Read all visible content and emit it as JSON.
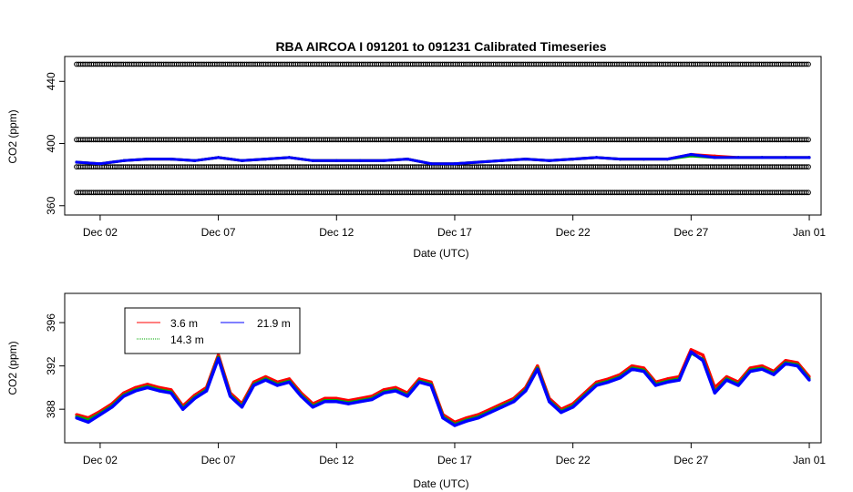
{
  "chart_data": [
    {
      "type": "scatter",
      "title": "RBA   AIRCOA I    091201  to  091231   Calibrated Timeseries",
      "xlabel": "Date (UTC)",
      "ylabel": "CO2 (ppm)",
      "xlim": [
        -0.5,
        31.5
      ],
      "ylim": [
        354,
        456
      ],
      "xticks": [
        1,
        6,
        11,
        16,
        21,
        26,
        31
      ],
      "xtick_labels": [
        "Dec 02",
        "Dec 07",
        "Dec 12",
        "Dec 17",
        "Dec 22",
        "Dec 27",
        "Jan 01"
      ],
      "yticks": [
        360,
        400,
        440
      ],
      "ytick_labels": [
        "360",
        "400",
        "440"
      ],
      "reference_lines": [
        {
          "name": "ref-high",
          "value": 451,
          "color": "#000000",
          "marker": "open-circle"
        },
        {
          "name": "ref-upper",
          "value": 402.5,
          "color": "#000000",
          "marker": "open-circle"
        },
        {
          "name": "ref-lower",
          "value": 385,
          "color": "#000000",
          "marker": "open-circle"
        },
        {
          "name": "ref-low",
          "value": 368.5,
          "color": "#000000",
          "marker": "open-circle"
        }
      ],
      "series": [
        {
          "name": "3.6 m",
          "color": "#ff0000",
          "dates": [
            0,
            1,
            2,
            3,
            4,
            5,
            6,
            7,
            8,
            9,
            10,
            11,
            12,
            13,
            14,
            15,
            16,
            17,
            18,
            19,
            20,
            21,
            22,
            23,
            24,
            25,
            26,
            27,
            28,
            29,
            30,
            31
          ],
          "values": [
            388,
            387,
            389,
            390,
            390,
            389,
            391,
            389,
            390,
            391,
            389,
            389,
            389,
            389,
            390,
            387,
            387,
            388,
            389,
            390,
            389,
            390,
            391,
            390,
            390,
            390,
            393,
            392,
            391,
            391,
            391,
            391
          ]
        },
        {
          "name": "14.3 m",
          "color": "#00aa00",
          "dates": [
            0,
            1,
            2,
            3,
            4,
            5,
            6,
            7,
            8,
            9,
            10,
            11,
            12,
            13,
            14,
            15,
            16,
            17,
            18,
            19,
            20,
            21,
            22,
            23,
            24,
            25,
            26,
            27,
            28,
            29,
            30,
            31
          ],
          "values": [
            388,
            387,
            389,
            390,
            390,
            389,
            391,
            389,
            390,
            391,
            389,
            389,
            389,
            389,
            390,
            387,
            387,
            388,
            389,
            390,
            389,
            390,
            391,
            390,
            390,
            390,
            392,
            391,
            391,
            391,
            391,
            391
          ]
        },
        {
          "name": "21.9 m",
          "color": "#0000ff",
          "dates": [
            0,
            1,
            2,
            3,
            4,
            5,
            6,
            7,
            8,
            9,
            10,
            11,
            12,
            13,
            14,
            15,
            16,
            17,
            18,
            19,
            20,
            21,
            22,
            23,
            24,
            25,
            26,
            27,
            28,
            29,
            30,
            31
          ],
          "values": [
            388,
            387,
            389,
            390,
            390,
            389,
            391,
            389,
            390,
            391,
            389,
            389,
            389,
            389,
            390,
            387,
            387,
            388,
            389,
            390,
            389,
            390,
            391,
            390,
            390,
            390,
            393,
            391,
            391,
            391,
            391,
            391
          ]
        }
      ]
    },
    {
      "type": "scatter",
      "title": "",
      "xlabel": "Date (UTC)",
      "ylabel": "CO2 (ppm)",
      "xlim": [
        -0.5,
        31.5
      ],
      "ylim": [
        384.9,
        398.7
      ],
      "xticks": [
        1,
        6,
        11,
        16,
        21,
        26,
        31
      ],
      "xtick_labels": [
        "Dec 02",
        "Dec 07",
        "Dec 12",
        "Dec 17",
        "Dec 22",
        "Dec 27",
        "Jan 01"
      ],
      "yticks": [
        388,
        392,
        396
      ],
      "ytick_labels": [
        "388",
        "392",
        "396"
      ],
      "legend": {
        "placement": "top-left",
        "entries": [
          "3.6 m",
          "14.3 m",
          "21.9 m"
        ]
      },
      "series": [
        {
          "name": "3.6 m",
          "color": "#ff0000",
          "dates": [
            0,
            0.5,
            1,
            1.5,
            2,
            2.5,
            3,
            3.5,
            4,
            4.5,
            5,
            5.5,
            6,
            6.5,
            7,
            7.5,
            8,
            8.5,
            9,
            9.5,
            10,
            10.5,
            11,
            11.5,
            12,
            12.5,
            13,
            13.5,
            14,
            14.5,
            15,
            15.5,
            16,
            16.5,
            17,
            17.5,
            18,
            18.5,
            19,
            19.5,
            20,
            20.5,
            21,
            21.5,
            22,
            22.5,
            23,
            23.5,
            24,
            24.5,
            25,
            25.5,
            26,
            26.5,
            27,
            27.5,
            28,
            28.5,
            29,
            29.5,
            30,
            30.5,
            31
          ],
          "values": [
            387.5,
            387.2,
            387.8,
            388.5,
            389.5,
            390.0,
            390.3,
            390.0,
            389.8,
            388.3,
            389.3,
            390.0,
            393.0,
            389.5,
            388.5,
            390.5,
            391.0,
            390.5,
            390.8,
            389.5,
            388.5,
            389.0,
            389.0,
            388.8,
            389.0,
            389.2,
            389.8,
            390.0,
            389.5,
            390.8,
            390.5,
            387.5,
            386.8,
            387.2,
            387.5,
            388.0,
            388.5,
            389.0,
            390.0,
            392.0,
            389.0,
            388.0,
            388.5,
            389.5,
            390.5,
            390.8,
            391.2,
            392.0,
            391.8,
            390.5,
            390.8,
            391.0,
            393.5,
            393.0,
            390.0,
            391.0,
            390.5,
            391.8,
            392.0,
            391.5,
            392.5,
            392.3,
            391.0
          ]
        },
        {
          "name": "14.3 m",
          "color": "#00aa00",
          "dates": [
            0,
            0.5,
            1,
            1.5,
            2,
            2.5,
            3,
            3.5,
            4,
            4.5,
            5,
            5.5,
            6,
            6.5,
            7,
            7.5,
            8,
            8.5,
            9,
            9.5,
            10,
            10.5,
            11,
            11.5,
            12,
            12.5,
            13,
            13.5,
            14,
            14.5,
            15,
            15.5,
            16,
            16.5,
            17,
            17.5,
            18,
            18.5,
            19,
            19.5,
            20,
            20.5,
            21,
            21.5,
            22,
            22.5,
            23,
            23.5,
            24,
            24.5,
            25,
            25.5,
            26,
            26.5,
            27,
            27.5,
            28,
            28.5,
            29,
            29.5,
            30,
            30.5,
            31
          ],
          "values": [
            387.3,
            387.0,
            387.6,
            388.3,
            389.3,
            389.8,
            390.1,
            389.8,
            389.6,
            388.1,
            389.1,
            389.8,
            392.8,
            389.3,
            388.3,
            390.3,
            390.8,
            390.3,
            390.6,
            389.3,
            388.3,
            388.8,
            388.8,
            388.6,
            388.8,
            389.0,
            389.6,
            389.8,
            389.3,
            390.6,
            390.3,
            387.3,
            386.6,
            387.0,
            387.3,
            387.8,
            388.3,
            388.8,
            389.8,
            391.8,
            388.8,
            387.8,
            388.3,
            389.3,
            390.3,
            390.6,
            391.0,
            391.8,
            391.6,
            390.3,
            390.6,
            390.8,
            393.2,
            392.6,
            389.6,
            390.8,
            390.3,
            391.6,
            391.8,
            391.3,
            392.3,
            392.1,
            390.8
          ]
        },
        {
          "name": "21.9 m",
          "color": "#0000ff",
          "dates": [
            0,
            0.5,
            1,
            1.5,
            2,
            2.5,
            3,
            3.5,
            4,
            4.5,
            5,
            5.5,
            6,
            6.5,
            7,
            7.5,
            8,
            8.5,
            9,
            9.5,
            10,
            10.5,
            11,
            11.5,
            12,
            12.5,
            13,
            13.5,
            14,
            14.5,
            15,
            15.5,
            16,
            16.5,
            17,
            17.5,
            18,
            18.5,
            19,
            19.5,
            20,
            20.5,
            21,
            21.5,
            22,
            22.5,
            23,
            23.5,
            24,
            24.5,
            25,
            25.5,
            26,
            26.5,
            27,
            27.5,
            28,
            28.5,
            29,
            29.5,
            30,
            30.5,
            31
          ],
          "values": [
            387.2,
            386.8,
            387.5,
            388.2,
            389.2,
            389.7,
            390.0,
            389.7,
            389.5,
            388.0,
            389.0,
            389.7,
            392.7,
            389.2,
            388.2,
            390.2,
            390.7,
            390.2,
            390.5,
            389.2,
            388.2,
            388.7,
            388.7,
            388.5,
            388.7,
            388.9,
            389.5,
            389.7,
            389.2,
            390.5,
            390.2,
            387.2,
            386.5,
            386.9,
            387.2,
            387.7,
            388.2,
            388.7,
            389.7,
            391.7,
            388.7,
            387.7,
            388.2,
            389.2,
            390.2,
            390.5,
            390.9,
            391.7,
            391.5,
            390.2,
            390.5,
            390.7,
            393.3,
            392.5,
            389.5,
            390.7,
            390.2,
            391.5,
            391.7,
            391.2,
            392.2,
            392.0,
            390.7
          ]
        }
      ]
    }
  ]
}
